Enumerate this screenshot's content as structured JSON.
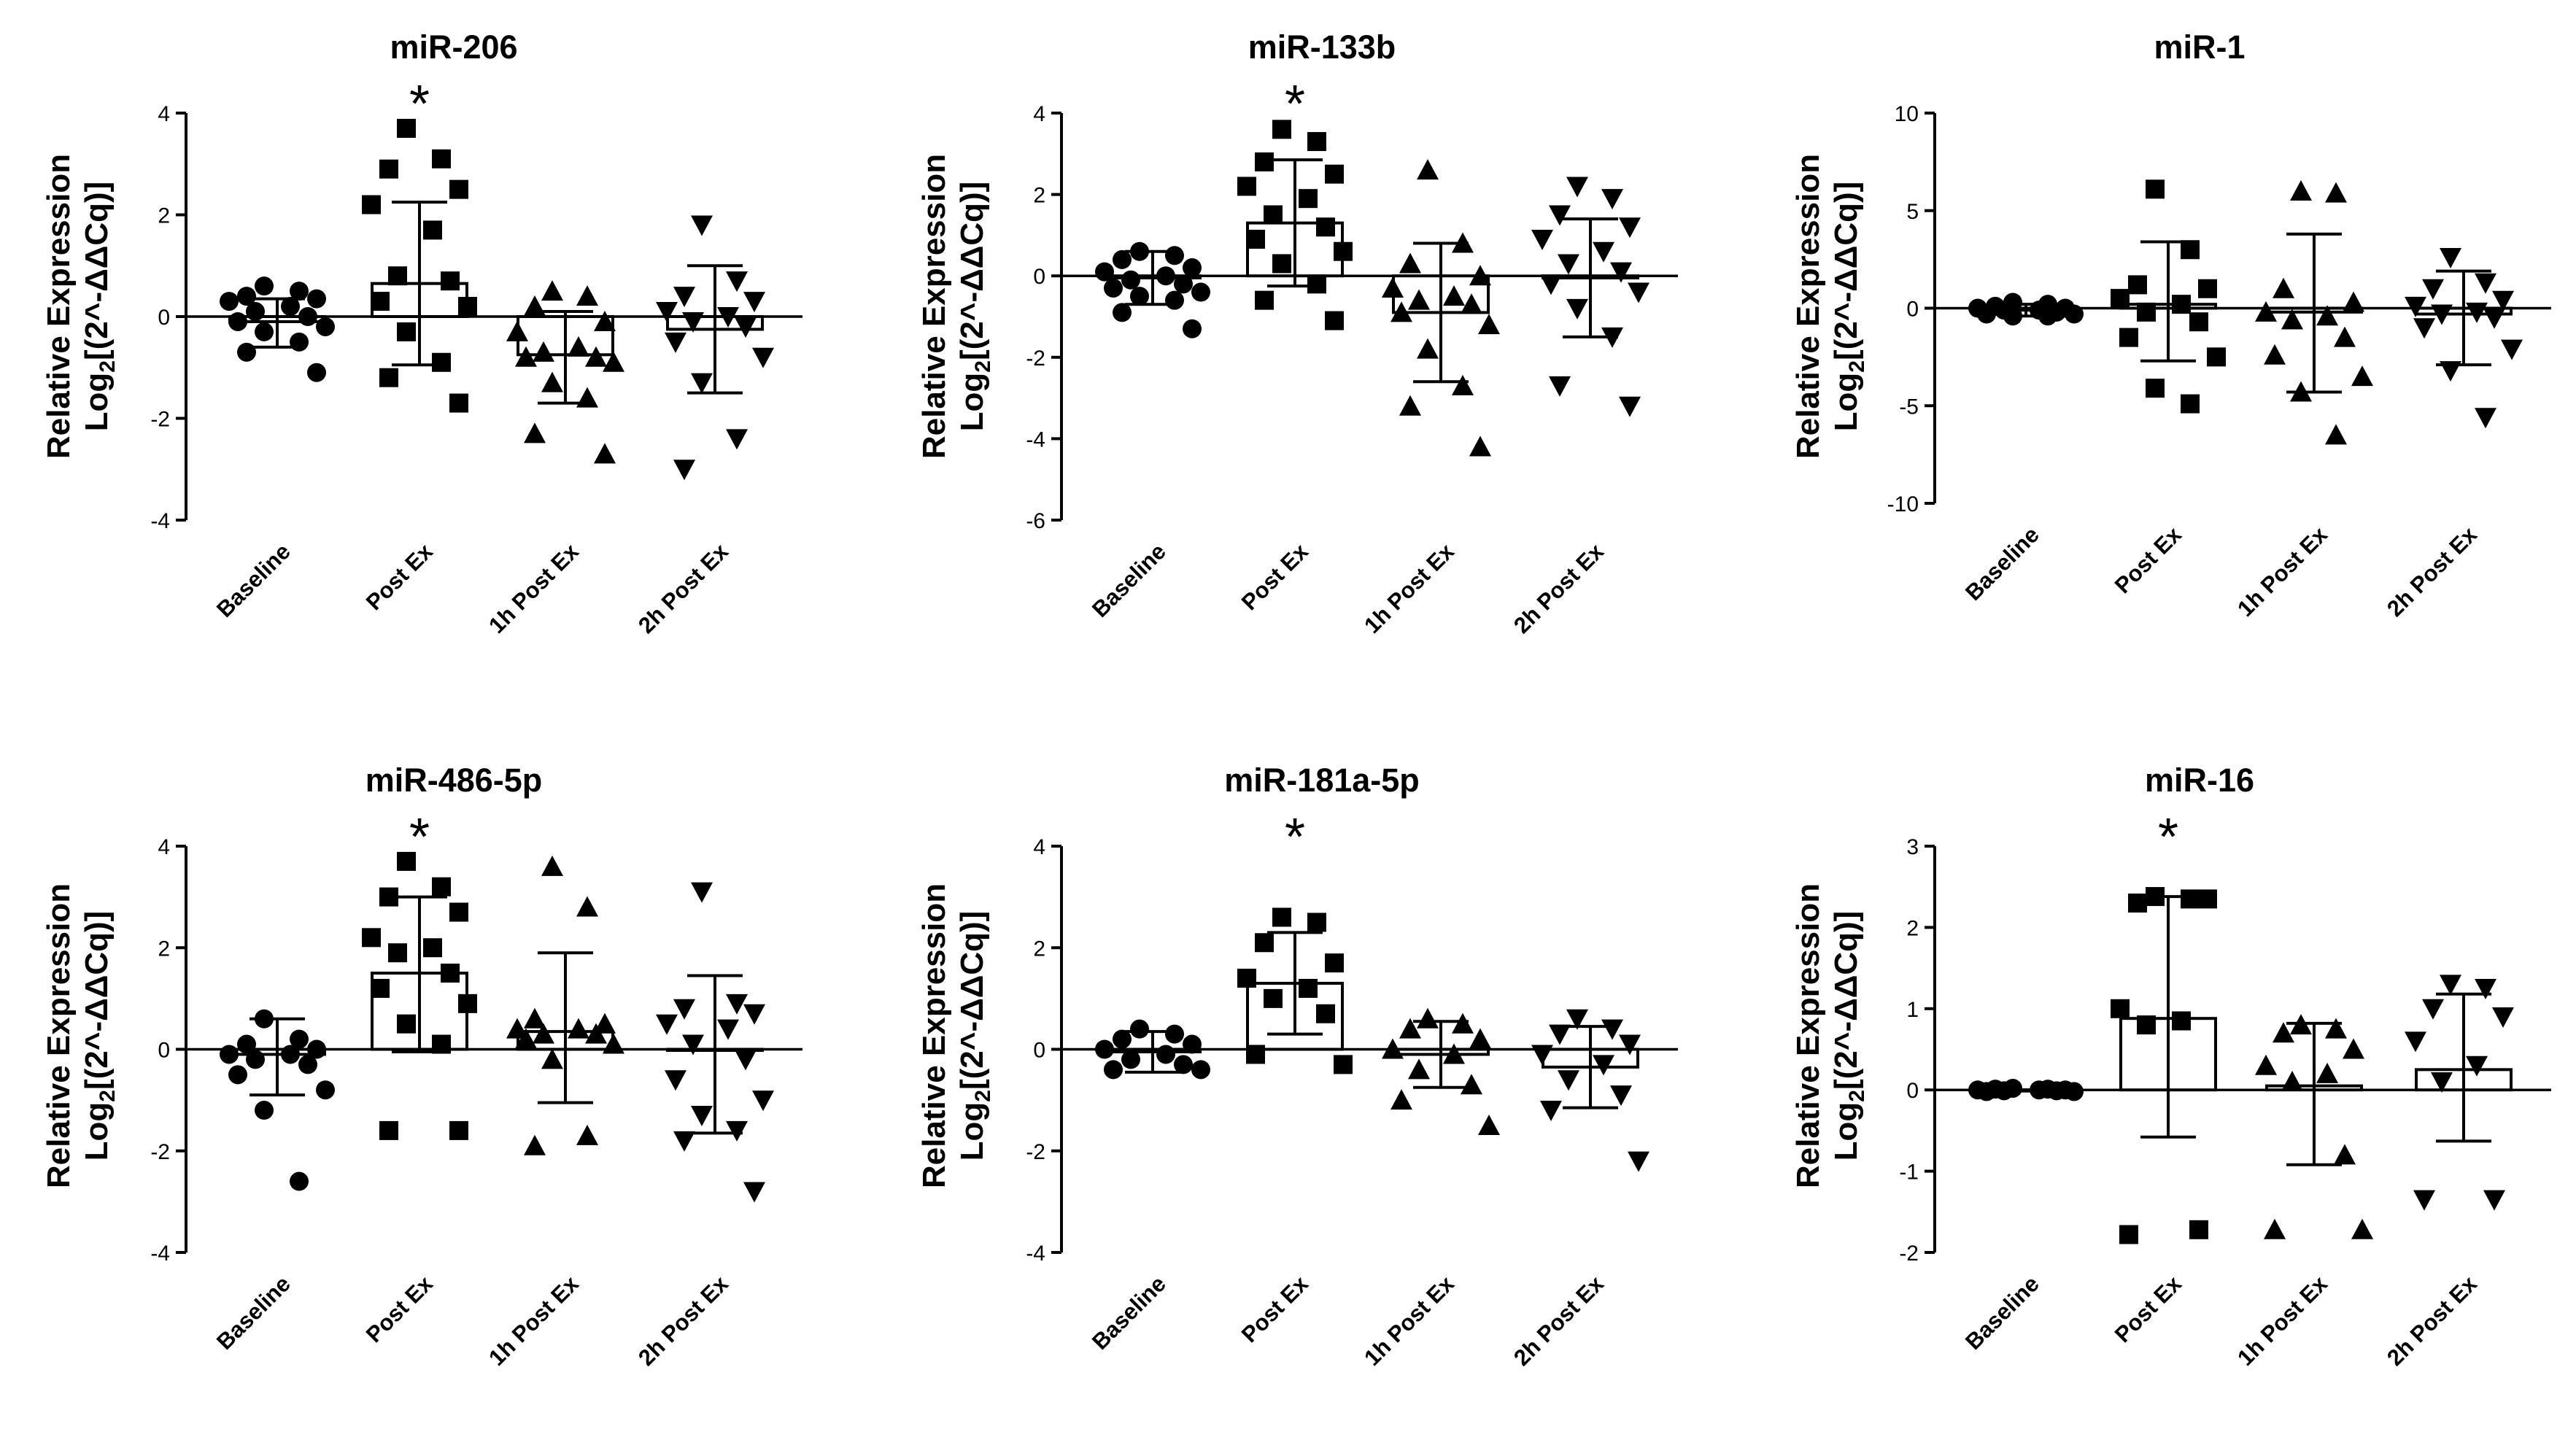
{
  "chart_data": [
    {
      "type": "scatter",
      "title": "miR-206",
      "ylabel_line1": "Relative Expression",
      "ylabel_line2_prefix": "Log",
      "ylabel_line2_sub": "2",
      "ylabel_line2_suffix": "[(2^-ΔΔCq)]",
      "ylim": [
        -4,
        4
      ],
      "yticks": [
        4,
        2,
        0,
        -2,
        -4
      ],
      "categories": [
        "Baseline",
        "Post Ex",
        "1h Post Ex",
        "2h Post Ex"
      ],
      "markers": [
        "circle",
        "square",
        "triangle-up",
        "triangle-down"
      ],
      "means": [
        -0.1,
        0.65,
        -0.75,
        -0.25
      ],
      "error_upper": [
        0.35,
        2.25,
        0.1,
        1.0
      ],
      "error_lower": [
        -0.6,
        -0.95,
        -1.7,
        -1.5
      ],
      "points": [
        [
          0.6,
          0.5,
          0.4,
          0.35,
          0.3,
          0.2,
          0.1,
          0.0,
          -0.1,
          -0.2,
          -0.3,
          -0.5,
          -0.7,
          -1.1
        ],
        [
          3.7,
          3.1,
          2.9,
          2.5,
          2.2,
          1.7,
          0.8,
          0.7,
          0.3,
          0.2,
          -0.3,
          -0.9,
          -1.2,
          -1.7
        ],
        [
          0.5,
          0.4,
          0.2,
          -0.1,
          -0.3,
          -0.6,
          -0.7,
          -0.8,
          -0.8,
          -0.9,
          -1.3,
          -1.6,
          -2.3,
          -2.7
        ],
        [
          1.8,
          0.7,
          0.4,
          0.3,
          0.1,
          0.0,
          -0.1,
          -0.2,
          -0.5,
          -0.8,
          -1.3,
          -2.4,
          -3.0
        ]
      ],
      "significant": [
        false,
        true,
        false,
        false
      ],
      "sig_symbol": "*"
    },
    {
      "type": "scatter",
      "title": "miR-133b",
      "ylabel_line1": "Relative Expression",
      "ylabel_line2_prefix": "Log",
      "ylabel_line2_sub": "2",
      "ylabel_line2_suffix": "[(2^-ΔΔCq)]",
      "ylim": [
        -6,
        4
      ],
      "yticks": [
        4,
        2,
        0,
        -2,
        -4,
        -6
      ],
      "categories": [
        "Baseline",
        "Post Ex",
        "1h Post Ex",
        "2h Post Ex"
      ],
      "markers": [
        "circle",
        "square",
        "triangle-up",
        "triangle-down"
      ],
      "means": [
        -0.05,
        1.3,
        -0.9,
        -0.05
      ],
      "error_upper": [
        0.6,
        2.85,
        0.8,
        1.4
      ],
      "error_lower": [
        -0.7,
        -0.25,
        -2.6,
        -1.5
      ],
      "points": [
        [
          0.6,
          0.5,
          0.4,
          0.2,
          0.1,
          0.0,
          -0.1,
          -0.2,
          -0.3,
          -0.4,
          -0.5,
          -0.6,
          -0.9,
          -1.3
        ],
        [
          3.6,
          3.3,
          2.8,
          2.5,
          2.2,
          1.9,
          1.5,
          1.2,
          0.9,
          0.6,
          0.3,
          -0.2,
          -0.6,
          -1.1
        ],
        [
          2.6,
          0.8,
          0.3,
          0.0,
          -0.3,
          -0.5,
          -0.6,
          -0.7,
          -0.9,
          -1.2,
          -1.8,
          -2.7,
          -3.2,
          -4.2
        ],
        [
          2.2,
          1.9,
          1.5,
          1.2,
          0.9,
          0.6,
          0.3,
          0.1,
          -0.2,
          -0.4,
          -0.8,
          -1.5,
          -2.7,
          -3.2
        ]
      ],
      "significant": [
        false,
        true,
        false,
        false
      ],
      "sig_symbol": "*"
    },
    {
      "type": "scatter",
      "title": "miR-1",
      "ylabel_line1": "Relative Expression",
      "ylabel_line2_prefix": "Log",
      "ylabel_line2_sub": "2",
      "ylabel_line2_suffix": "[(2^-ΔΔCq)]",
      "ylim": [
        -10,
        10
      ],
      "yticks": [
        10,
        5,
        0,
        -5,
        -10
      ],
      "categories": [
        "Baseline",
        "Post Ex",
        "1h Post Ex",
        "2h Post Ex"
      ],
      "markers": [
        "circle",
        "square",
        "triangle-up",
        "triangle-down"
      ],
      "means": [
        -0.1,
        0.2,
        -0.2,
        -0.3
      ],
      "error_upper": [
        0.2,
        3.4,
        3.8,
        1.9
      ],
      "error_lower": [
        -0.4,
        -2.7,
        -4.3,
        -2.9
      ],
      "points": [
        [
          0.3,
          0.2,
          0.1,
          0.0,
          0.0,
          -0.1,
          -0.1,
          -0.2,
          -0.3,
          -0.3,
          -0.4,
          -0.4
        ],
        [
          6.1,
          3.0,
          1.2,
          1.0,
          0.5,
          0.2,
          -0.2,
          -0.7,
          -1.5,
          -2.5,
          -4.1,
          -4.9
        ],
        [
          6.0,
          5.9,
          1.0,
          0.3,
          -0.2,
          -0.4,
          -0.6,
          -1.5,
          -2.4,
          -3.5,
          -4.3,
          -6.5
        ],
        [
          2.6,
          1.3,
          1.0,
          0.4,
          0.1,
          -0.2,
          -0.3,
          -0.5,
          -1.0,
          -2.1,
          -3.2,
          -5.6
        ]
      ],
      "significant": [
        false,
        false,
        false,
        false
      ],
      "sig_symbol": "*"
    },
    {
      "type": "scatter",
      "title": "miR-486-5p",
      "ylabel_line1": "Relative Expression",
      "ylabel_line2_prefix": "Log",
      "ylabel_line2_sub": "2",
      "ylabel_line2_suffix": "[(2^-ΔΔCq)]",
      "ylim": [
        -4,
        4
      ],
      "yticks": [
        4,
        2,
        0,
        -2,
        -4
      ],
      "categories": [
        "Baseline",
        "Post Ex",
        "1h Post Ex",
        "2h Post Ex"
      ],
      "markers": [
        "circle",
        "square",
        "triangle-up",
        "triangle-down"
      ],
      "means": [
        -0.1,
        1.5,
        0.35,
        0.0
      ],
      "error_upper": [
        0.6,
        3.0,
        1.9,
        1.45
      ],
      "error_lower": [
        -0.9,
        -0.05,
        -1.05,
        -1.65
      ],
      "points": [
        [
          0.6,
          0.2,
          0.1,
          0.0,
          -0.1,
          -0.1,
          -0.2,
          -0.3,
          -0.5,
          -0.8,
          -1.2,
          -2.6
        ],
        [
          3.7,
          3.2,
          3.0,
          2.7,
          2.2,
          2.0,
          1.9,
          1.5,
          1.2,
          0.9,
          0.5,
          0.1,
          -1.6,
          -1.6
        ],
        [
          3.6,
          2.8,
          0.6,
          0.5,
          0.4,
          0.4,
          0.3,
          0.3,
          0.2,
          0.1,
          -0.2,
          -1.7,
          -1.9
        ],
        [
          3.1,
          0.9,
          0.8,
          0.7,
          0.5,
          0.4,
          0.1,
          -0.2,
          -0.6,
          -1.0,
          -1.3,
          -1.6,
          -1.8,
          -2.8
        ]
      ],
      "significant": [
        false,
        true,
        false,
        false
      ],
      "sig_symbol": "*"
    },
    {
      "type": "scatter",
      "title": "miR-181a-5p",
      "ylabel_line1": "Relative Expression",
      "ylabel_line2_prefix": "Log",
      "ylabel_line2_sub": "2",
      "ylabel_line2_suffix": "[(2^-ΔΔCq)]",
      "ylim": [
        -4,
        4
      ],
      "yticks": [
        4,
        2,
        0,
        -2,
        -4
      ],
      "categories": [
        "Baseline",
        "Post Ex",
        "1h Post Ex",
        "2h Post Ex"
      ],
      "markers": [
        "circle",
        "square",
        "triangle-up",
        "triangle-down"
      ],
      "means": [
        -0.05,
        1.3,
        -0.1,
        -0.35
      ],
      "error_upper": [
        0.35,
        2.3,
        0.55,
        0.45
      ],
      "error_lower": [
        -0.45,
        0.3,
        -0.75,
        -1.15
      ],
      "points": [
        [
          0.4,
          0.3,
          0.2,
          0.1,
          0.0,
          -0.1,
          -0.2,
          -0.3,
          -0.4,
          -0.4
        ],
        [
          2.6,
          2.5,
          2.1,
          1.7,
          1.4,
          1.2,
          1.0,
          0.7,
          -0.1,
          -0.3
        ],
        [
          0.6,
          0.5,
          0.4,
          0.2,
          0.0,
          -0.1,
          -0.4,
          -0.7,
          -1.0,
          -1.5
        ],
        [
          0.6,
          0.4,
          0.3,
          0.1,
          -0.1,
          -0.3,
          -0.6,
          -0.9,
          -1.2,
          -2.2
        ]
      ],
      "significant": [
        false,
        true,
        false,
        false
      ],
      "sig_symbol": "*"
    },
    {
      "type": "scatter",
      "title": "miR-16",
      "ylabel_line1": "Relative Expression",
      "ylabel_line2_prefix": "Log",
      "ylabel_line2_sub": "2",
      "ylabel_line2_suffix": "[(2^-ΔΔCq)]",
      "ylim": [
        -2,
        3
      ],
      "yticks": [
        3,
        2,
        1,
        0,
        -1,
        -2
      ],
      "categories": [
        "Baseline",
        "Post Ex",
        "1h Post Ex",
        "2h Post Ex"
      ],
      "markers": [
        "circle",
        "square",
        "triangle-up",
        "triangle-down"
      ],
      "means": [
        0.0,
        0.88,
        0.05,
        0.25
      ],
      "error_upper": [
        0.0,
        2.38,
        0.82,
        1.18
      ],
      "error_lower": [
        0.0,
        -0.58,
        -0.92,
        -0.63
      ],
      "points": [
        [
          0.02,
          0.01,
          0.01,
          0.0,
          0.0,
          0.0,
          -0.01,
          -0.01,
          -0.02,
          -0.02
        ],
        [
          2.38,
          2.35,
          2.3,
          2.35,
          1.0,
          0.85,
          0.8,
          -1.72,
          -1.78
        ],
        [
          0.8,
          0.75,
          0.7,
          0.5,
          0.3,
          0.2,
          0.1,
          -0.8,
          -1.72,
          -1.72
        ],
        [
          1.3,
          1.25,
          1.0,
          0.9,
          0.6,
          0.3,
          0.1,
          -1.35,
          -1.35
        ]
      ],
      "significant": [
        false,
        true,
        false,
        false
      ],
      "sig_symbol": "*"
    }
  ]
}
